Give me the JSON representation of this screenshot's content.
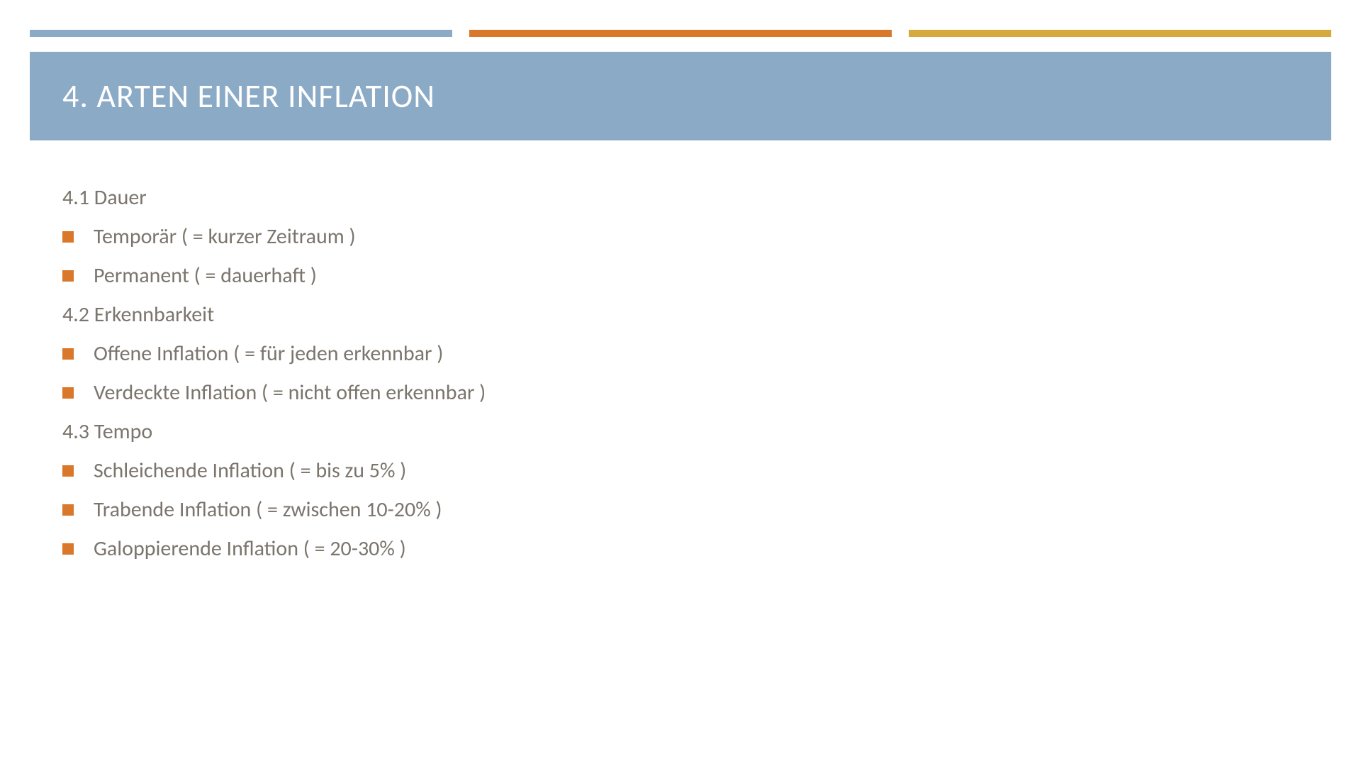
{
  "colors": {
    "bar_blue": "#8aaac6",
    "bar_orange": "#d9772a",
    "bar_gold": "#d6a93f",
    "title_band_bg": "#8aaac6",
    "title_text": "#ffffff",
    "body_text": "#7b756d",
    "bullet": "#d9772a"
  },
  "slide": {
    "title": "4. ARTEN EINER INFLATION",
    "sections": [
      {
        "heading": "4.1 Dauer",
        "items": [
          "Temporär ( = kurzer Zeitraum )",
          "Permanent ( = dauerhaft )"
        ]
      },
      {
        "heading": "4.2 Erkennbarkeit",
        "items": [
          "Offene Inflation ( = für jeden erkennbar )",
          "Verdeckte Inflation ( = nicht offen erkennbar )"
        ]
      },
      {
        "heading": "4.3 Tempo",
        "items": [
          "Schleichende Inflation ( = bis zu 5% )",
          "Trabende Inflation ( = zwischen 10-20% )",
          "Galoppierende Inflation ( = 20-30% )"
        ]
      }
    ]
  }
}
